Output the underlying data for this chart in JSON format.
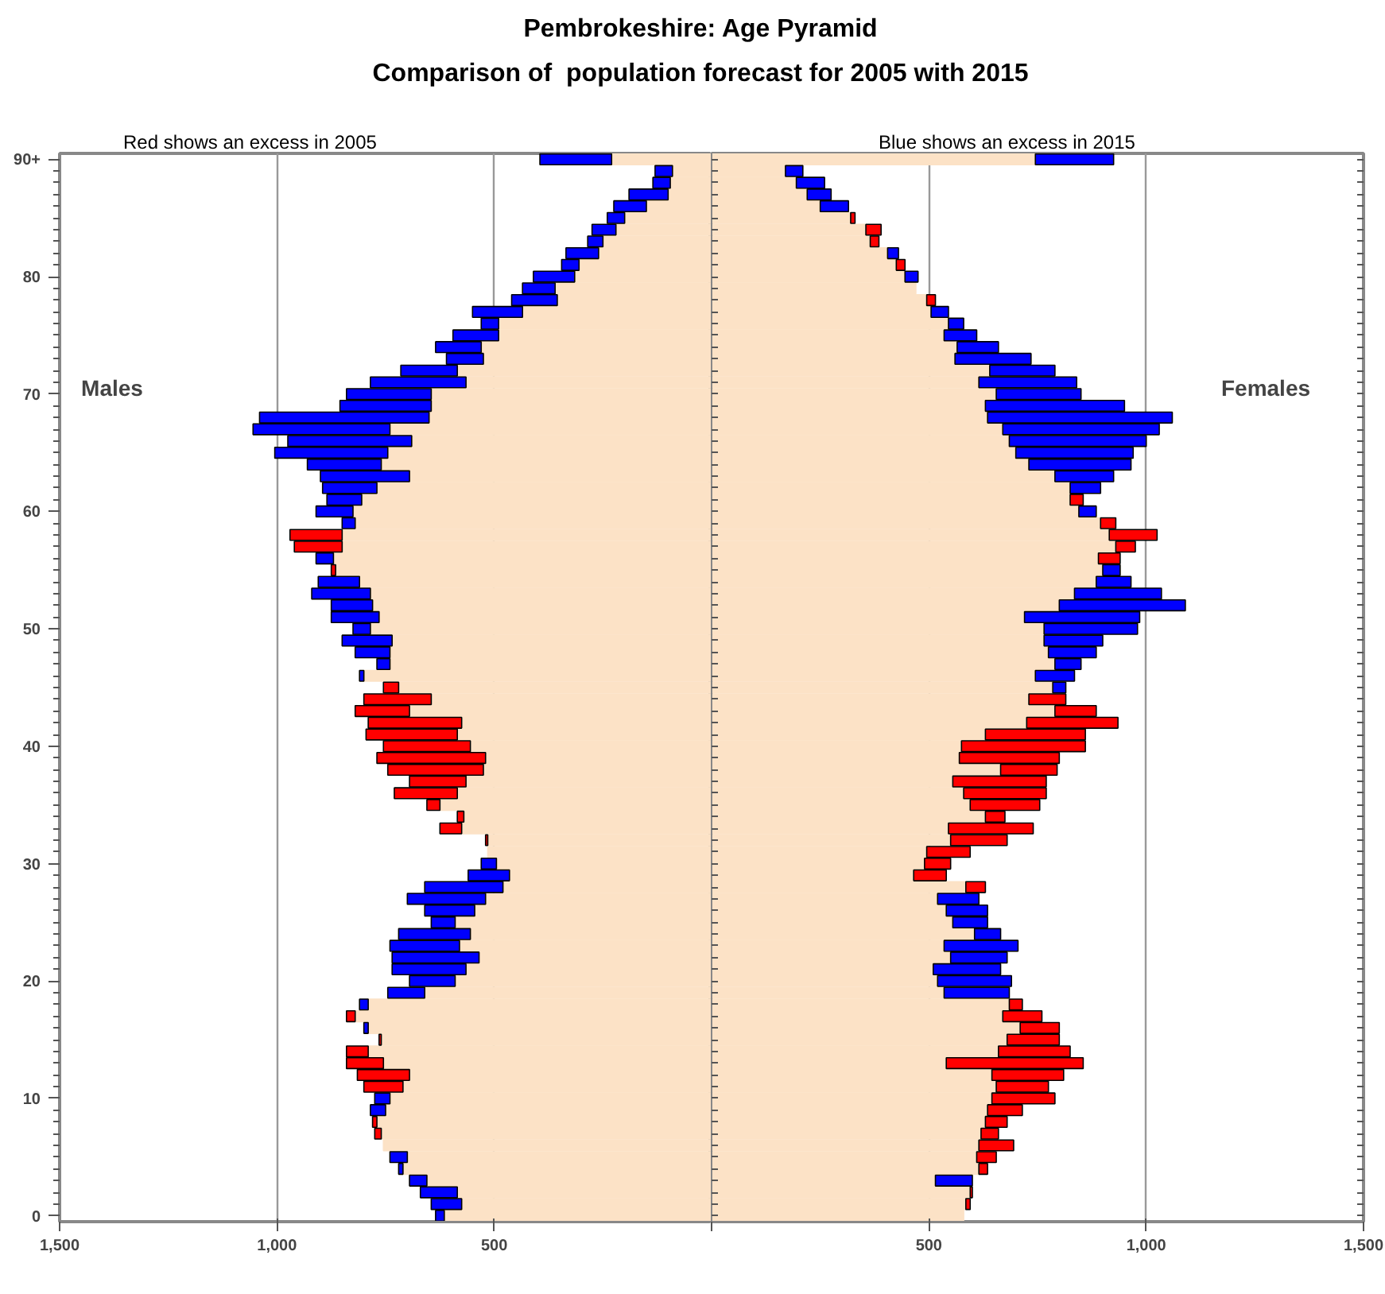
{
  "chart_data": [
    {
      "type": "bar",
      "orientation": "horizontal",
      "stacked": true,
      "title": "Pembrokeshire: Age Pyramid",
      "subtitle": "Comparison of  population forecast for 2005 with 2015",
      "annotations": [
        "Red shows an excess in 2005",
        "Males"
      ],
      "categories": [
        "90+",
        null,
        null,
        null,
        null,
        null,
        null,
        null,
        null,
        null,
        "80",
        null,
        null,
        null,
        null,
        null,
        null,
        null,
        null,
        null,
        "70",
        null,
        null,
        null,
        null,
        null,
        null,
        null,
        null,
        null,
        "60",
        null,
        null,
        null,
        null,
        null,
        null,
        null,
        null,
        null,
        "50",
        null,
        null,
        null,
        null,
        null,
        null,
        null,
        null,
        null,
        "40",
        null,
        null,
        null,
        null,
        null,
        null,
        null,
        null,
        null,
        "30",
        null,
        null,
        null,
        null,
        null,
        null,
        null,
        null,
        null,
        "20",
        null,
        null,
        null,
        null,
        null,
        null,
        null,
        null,
        null,
        "10",
        null,
        null,
        null,
        null,
        null,
        null,
        null,
        null,
        null,
        "0"
      ],
      "xlim": [
        1500,
        0
      ],
      "xticks": [
        {
          "value": 1500,
          "label": "1,500"
        },
        {
          "value": 1000,
          "label": "1,000"
        },
        500,
        {
          "value": 0,
          "label": null
        }
      ],
      "grid": "x",
      "series": [
        {
          "color": "#fce2c6",
          "values": [
            230,
            90,
            95,
            100,
            150,
            200,
            220,
            250,
            260,
            305,
            315,
            360,
            355,
            435,
            490,
            490,
            530,
            525,
            585,
            565,
            645,
            645,
            650,
            740,
            690,
            745,
            760,
            695,
            770,
            805,
            825,
            820,
            850,
            850,
            870,
            865,
            810,
            785,
            780,
            765,
            785,
            735,
            740,
            740,
            800,
            720,
            645,
            695,
            575,
            585,
            555,
            520,
            525,
            565,
            585,
            625,
            570,
            575,
            515,
            515,
            495,
            465,
            480,
            520,
            545,
            590,
            555,
            580,
            535,
            565,
            590,
            660,
            790,
            820,
            790,
            760,
            790,
            755,
            695,
            710,
            740,
            750,
            770,
            760,
            755,
            700,
            710,
            655,
            585,
            575,
            615
          ]
        },
        {
          "color": "#ff0000",
          "values": [
            null,
            null,
            null,
            null,
            null,
            null,
            null,
            null,
            null,
            null,
            null,
            null,
            null,
            null,
            null,
            null,
            null,
            null,
            null,
            null,
            null,
            null,
            null,
            null,
            null,
            null,
            null,
            null,
            null,
            null,
            null,
            null,
            120,
            110,
            null,
            10,
            null,
            null,
            null,
            null,
            null,
            null,
            null,
            null,
            null,
            35,
            155,
            125,
            215,
            210,
            200,
            250,
            220,
            130,
            145,
            30,
            15,
            50,
            5,
            null,
            null,
            null,
            null,
            null,
            null,
            null,
            null,
            null,
            null,
            null,
            null,
            null,
            null,
            20,
            null,
            5,
            50,
            85,
            120,
            90,
            null,
            null,
            10,
            15,
            null,
            null,
            null,
            null,
            null,
            null,
            null
          ]
        },
        {
          "color": "#0000ff",
          "values": [
            165,
            40,
            40,
            90,
            75,
            40,
            55,
            35,
            75,
            40,
            95,
            75,
            105,
            115,
            40,
            105,
            105,
            85,
            130,
            220,
            195,
            210,
            390,
            315,
            285,
            260,
            170,
            205,
            125,
            80,
            85,
            30,
            null,
            null,
            40,
            null,
            95,
            135,
            95,
            110,
            40,
            115,
            80,
            30,
            10,
            null,
            null,
            null,
            null,
            null,
            null,
            null,
            null,
            null,
            null,
            null,
            null,
            null,
            null,
            null,
            35,
            95,
            180,
            180,
            115,
            55,
            165,
            160,
            200,
            170,
            105,
            85,
            20,
            null,
            10,
            null,
            null,
            null,
            null,
            null,
            35,
            35,
            null,
            null,
            null,
            40,
            10,
            40,
            85,
            70,
            20
          ]
        }
      ]
    },
    {
      "type": "bar",
      "orientation": "horizontal",
      "stacked": true,
      "annotations": [
        "Blue shows an excess in 2015",
        "Females"
      ],
      "categories": [
        null,
        null,
        null,
        null,
        null,
        null,
        null,
        null,
        null,
        null,
        null,
        null,
        null,
        null,
        null,
        null,
        null,
        null,
        null,
        null,
        null,
        null,
        null,
        null,
        null,
        null,
        null,
        null,
        null,
        null,
        null,
        null,
        null,
        null,
        null,
        null,
        null,
        null,
        null,
        null,
        null,
        null,
        null,
        null,
        null,
        null,
        null,
        null,
        null,
        null,
        null,
        null,
        null,
        null,
        null,
        null,
        null,
        null,
        null,
        null,
        null,
        null,
        null,
        null,
        null,
        null,
        null,
        null,
        null,
        null,
        null,
        null,
        null,
        null,
        null,
        null,
        null,
        null,
        null,
        null,
        null,
        null,
        null,
        null,
        null,
        null,
        null,
        null,
        null,
        null,
        null
      ],
      "tick_labels": "x",
      "xlim": [
        0,
        1500
      ],
      "xticks": [
        {
          "value": 0,
          "label": null
        },
        500,
        {
          "value": 1000,
          "label": "1,000"
        },
        {
          "value": 1500,
          "label": "1,500"
        }
      ],
      "grid": "x",
      "series": [
        {
          "color": "#fce2c6",
          "values": [
            745,
            170,
            195,
            220,
            250,
            320,
            355,
            365,
            405,
            425,
            445,
            470,
            495,
            505,
            545,
            535,
            565,
            560,
            640,
            615,
            655,
            630,
            635,
            670,
            685,
            700,
            730,
            790,
            825,
            825,
            845,
            895,
            915,
            930,
            890,
            900,
            885,
            835,
            800,
            720,
            765,
            765,
            775,
            790,
            745,
            785,
            730,
            790,
            725,
            630,
            575,
            570,
            665,
            555,
            580,
            595,
            630,
            545,
            550,
            495,
            490,
            465,
            585,
            520,
            540,
            555,
            605,
            535,
            550,
            510,
            520,
            535,
            685,
            670,
            710,
            680,
            660,
            540,
            645,
            655,
            645,
            635,
            630,
            620,
            615,
            610,
            615,
            515,
            595,
            585,
            580
          ]
        },
        {
          "color": "#ff0000",
          "values": [
            null,
            null,
            null,
            null,
            null,
            10,
            35,
            20,
            null,
            20,
            null,
            null,
            20,
            null,
            null,
            null,
            null,
            null,
            null,
            null,
            null,
            null,
            null,
            null,
            null,
            null,
            null,
            null,
            null,
            30,
            null,
            35,
            110,
            45,
            50,
            null,
            null,
            null,
            null,
            null,
            null,
            null,
            null,
            null,
            null,
            null,
            85,
            95,
            210,
            230,
            285,
            230,
            130,
            215,
            190,
            160,
            45,
            195,
            130,
            100,
            60,
            75,
            45,
            null,
            null,
            null,
            null,
            null,
            null,
            null,
            null,
            null,
            30,
            90,
            90,
            120,
            165,
            315,
            165,
            120,
            145,
            80,
            50,
            40,
            80,
            45,
            20,
            null,
            5,
            10,
            null
          ]
        },
        {
          "color": "#0000ff",
          "values": [
            180,
            40,
            65,
            55,
            65,
            null,
            null,
            null,
            25,
            null,
            30,
            null,
            null,
            40,
            35,
            75,
            95,
            175,
            150,
            225,
            195,
            320,
            425,
            360,
            315,
            270,
            235,
            135,
            70,
            null,
            40,
            null,
            null,
            null,
            null,
            40,
            80,
            200,
            290,
            265,
            215,
            135,
            110,
            60,
            90,
            30,
            null,
            null,
            null,
            null,
            null,
            null,
            null,
            null,
            null,
            null,
            null,
            null,
            null,
            null,
            null,
            null,
            null,
            95,
            95,
            80,
            60,
            170,
            130,
            155,
            170,
            150,
            null,
            null,
            null,
            null,
            null,
            null,
            null,
            null,
            null,
            null,
            null,
            null,
            null,
            null,
            null,
            85,
            null,
            null,
            null
          ]
        }
      ]
    }
  ]
}
